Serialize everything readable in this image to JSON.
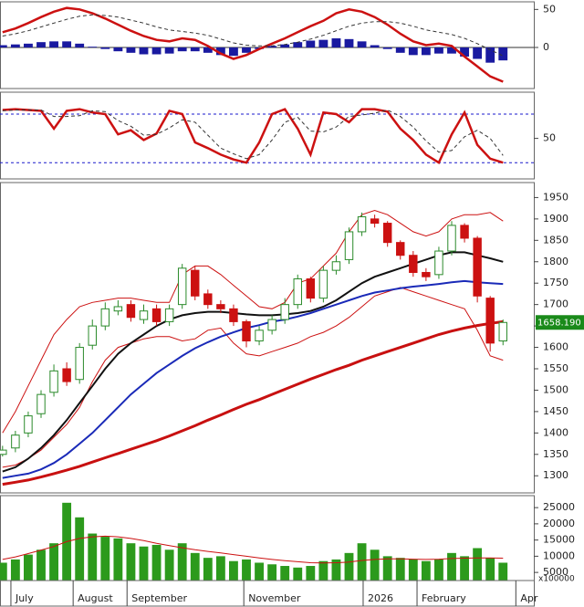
{
  "chart_data": [
    {
      "type": "macd",
      "ylim": [
        -54,
        60
      ],
      "yticks": [
        0,
        50
      ],
      "series": [
        {
          "color": "#cc1111",
          "style": "solid",
          "values": [
            20,
            25,
            32,
            40,
            47,
            52,
            50,
            45,
            38,
            30,
            22,
            15,
            10,
            8,
            12,
            10,
            2,
            -8,
            -15,
            -10,
            -2,
            5,
            12,
            20,
            28,
            35,
            45,
            50,
            47,
            40,
            30,
            18,
            8,
            3,
            5,
            2,
            -12,
            -25,
            -38,
            -45
          ]
        },
        {
          "color": "#333333",
          "style": "dashed",
          "values": [
            15,
            18,
            22,
            27,
            32,
            37,
            41,
            43,
            42,
            40,
            36,
            32,
            27,
            23,
            21,
            19,
            16,
            11,
            6,
            3,
            2,
            2,
            4,
            7,
            11,
            16,
            22,
            28,
            32,
            34,
            34,
            32,
            28,
            23,
            20,
            17,
            12,
            5,
            -3,
            -11
          ]
        },
        {
          "color": "#1a1aa0",
          "style": "bar",
          "values": [
            3,
            4,
            5,
            7,
            8,
            8,
            5,
            1,
            -2,
            -5,
            -7,
            -9,
            -9,
            -8,
            -5,
            -5,
            -7,
            -10,
            -11,
            -7,
            -2,
            2,
            4,
            7,
            9,
            10,
            12,
            11,
            8,
            3,
            -2,
            -7,
            -10,
            -10,
            -8,
            -8,
            -12,
            -15,
            -20,
            -17
          ]
        }
      ]
    },
    {
      "type": "stochastic",
      "ylim": [
        0,
        107
      ],
      "yticks": [
        50
      ],
      "levels": [
        80,
        20
      ],
      "level_color": "#1a1acc",
      "series": [
        {
          "color": "#cc1111",
          "style": "solid",
          "values": [
            85,
            86,
            85,
            84,
            62,
            84,
            86,
            82,
            80,
            55,
            60,
            48,
            56,
            84,
            80,
            45,
            38,
            30,
            24,
            20,
            45,
            80,
            86,
            62,
            30,
            82,
            80,
            70,
            86,
            86,
            83,
            62,
            48,
            30,
            20,
            55,
            82,
            42,
            25,
            20
          ]
        },
        {
          "color": "#333333",
          "style": "dashed",
          "values": [
            84,
            85,
            85,
            85,
            77,
            77,
            78,
            84,
            83,
            72,
            65,
            54,
            55,
            63,
            73,
            70,
            54,
            38,
            31,
            25,
            30,
            48,
            70,
            76,
            59,
            58,
            64,
            77,
            79,
            81,
            85,
            77,
            64,
            47,
            33,
            35,
            52,
            60,
            50,
            29
          ]
        }
      ]
    },
    {
      "type": "candlestick",
      "ylim": [
        1260,
        1985
      ],
      "yticks": [
        1300,
        1350,
        1400,
        1450,
        1500,
        1550,
        1600,
        1650,
        1700,
        1750,
        1800,
        1850,
        1900,
        1950
      ],
      "xlim": [
        -0.2,
        41.4
      ],
      "x": [
        0,
        1,
        2,
        3,
        4,
        5,
        6,
        7,
        8,
        9,
        10,
        11,
        12,
        13,
        14,
        15,
        16,
        17,
        18,
        19,
        20,
        21,
        22,
        23,
        24,
        25,
        26,
        27,
        28,
        29,
        30,
        31,
        32,
        33,
        34,
        35,
        36,
        37,
        38,
        39
      ],
      "open": [
        1350,
        1365,
        1400,
        1445,
        1495,
        1550,
        1525,
        1605,
        1650,
        1685,
        1700,
        1665,
        1690,
        1660,
        1700,
        1780,
        1725,
        1700,
        1690,
        1660,
        1615,
        1640,
        1665,
        1700,
        1760,
        1715,
        1780,
        1805,
        1870,
        1900,
        1890,
        1845,
        1815,
        1775,
        1770,
        1825,
        1885,
        1855,
        1715,
        1615
      ],
      "high": [
        1370,
        1405,
        1450,
        1500,
        1560,
        1565,
        1610,
        1665,
        1705,
        1710,
        1710,
        1700,
        1700,
        1700,
        1795,
        1790,
        1735,
        1710,
        1700,
        1665,
        1650,
        1675,
        1715,
        1770,
        1765,
        1790,
        1815,
        1880,
        1915,
        1910,
        1895,
        1850,
        1825,
        1785,
        1835,
        1895,
        1890,
        1860,
        1720,
        1665
      ],
      "low": [
        1345,
        1355,
        1390,
        1435,
        1485,
        1510,
        1515,
        1595,
        1640,
        1675,
        1660,
        1655,
        1650,
        1650,
        1690,
        1710,
        1690,
        1680,
        1650,
        1600,
        1605,
        1630,
        1655,
        1690,
        1705,
        1705,
        1770,
        1795,
        1860,
        1880,
        1835,
        1805,
        1765,
        1755,
        1760,
        1815,
        1845,
        1705,
        1590,
        1605
      ],
      "close": [
        1360,
        1395,
        1440,
        1490,
        1545,
        1520,
        1600,
        1650,
        1690,
        1695,
        1670,
        1685,
        1660,
        1690,
        1785,
        1720,
        1700,
        1690,
        1660,
        1615,
        1640,
        1665,
        1700,
        1760,
        1715,
        1780,
        1800,
        1870,
        1905,
        1890,
        1845,
        1815,
        1775,
        1765,
        1825,
        1885,
        1855,
        1720,
        1610,
        1658.19
      ],
      "up_color": "#2a8a2a",
      "down_color": "#cc1111",
      "series": [
        {
          "color": "#cc1111",
          "width": 1,
          "values": [
            1400,
            1450,
            1510,
            1570,
            1630,
            1665,
            1695,
            1705,
            1710,
            1715,
            1715,
            1710,
            1705,
            1705,
            1770,
            1790,
            1790,
            1770,
            1745,
            1720,
            1695,
            1690,
            1705,
            1750,
            1760,
            1790,
            1820,
            1870,
            1910,
            1920,
            1910,
            1890,
            1870,
            1860,
            1870,
            1900,
            1910,
            1910,
            1915,
            1895
          ]
        },
        {
          "color": "#cc1111",
          "width": 1,
          "values": [
            1320,
            1325,
            1340,
            1360,
            1390,
            1420,
            1460,
            1520,
            1570,
            1600,
            1610,
            1620,
            1625,
            1625,
            1615,
            1620,
            1640,
            1645,
            1610,
            1585,
            1580,
            1590,
            1600,
            1610,
            1625,
            1635,
            1650,
            1670,
            1695,
            1720,
            1730,
            1740,
            1730,
            1720,
            1710,
            1700,
            1690,
            1640,
            1580,
            1570
          ]
        },
        {
          "color": "#111111",
          "width": 2,
          "values": [
            1310,
            1320,
            1340,
            1365,
            1395,
            1430,
            1470,
            1510,
            1550,
            1585,
            1610,
            1630,
            1650,
            1665,
            1675,
            1680,
            1683,
            1683,
            1680,
            1677,
            1675,
            1675,
            1677,
            1680,
            1685,
            1695,
            1710,
            1730,
            1750,
            1765,
            1775,
            1785,
            1795,
            1805,
            1815,
            1822,
            1822,
            1815,
            1808,
            1800
          ]
        },
        {
          "color": "#1a2ab8",
          "width": 2,
          "values": [
            1295,
            1300,
            1305,
            1315,
            1330,
            1350,
            1375,
            1400,
            1430,
            1460,
            1490,
            1515,
            1540,
            1560,
            1580,
            1598,
            1612,
            1625,
            1635,
            1645,
            1652,
            1660,
            1665,
            1672,
            1680,
            1690,
            1700,
            1710,
            1720,
            1728,
            1733,
            1738,
            1742,
            1745,
            1748,
            1752,
            1755,
            1752,
            1750,
            1748
          ]
        },
        {
          "color": "#c81010",
          "width": 3,
          "values": [
            1280,
            1285,
            1290,
            1297,
            1305,
            1313,
            1322,
            1332,
            1342,
            1352,
            1362,
            1372,
            1382,
            1393,
            1405,
            1417,
            1430,
            1442,
            1455,
            1467,
            1478,
            1490,
            1502,
            1514,
            1526,
            1537,
            1548,
            1558,
            1570,
            1580,
            1590,
            1600,
            1610,
            1620,
            1630,
            1638,
            1645,
            1651,
            1656,
            1660
          ]
        }
      ],
      "last_price": {
        "value": 1658.19,
        "label": "1658.190"
      },
      "last_price_color": "#1a8a1a"
    },
    {
      "type": "bar",
      "ylim": [
        2500,
        28700
      ],
      "yticks": [
        5000,
        10000,
        15000,
        20000,
        25000
      ],
      "unit_label": "x100000",
      "color": "#2c9a1c",
      "values": [
        8000,
        9000,
        10500,
        12000,
        14000,
        26500,
        22000,
        17000,
        16000,
        15500,
        14000,
        13000,
        13500,
        12000,
        14000,
        11000,
        9500,
        10000,
        8500,
        9000,
        8000,
        7500,
        7000,
        6500,
        7000,
        8500,
        9000,
        11000,
        14000,
        12000,
        10000,
        9500,
        9000,
        8500,
        9000,
        11000,
        10000,
        12500,
        9500,
        8000
      ],
      "series": [
        {
          "color": "#cc1111",
          "values": [
            9000,
            9800,
            10800,
            11900,
            13000,
            14500,
            15500,
            16000,
            16200,
            16000,
            15500,
            14800,
            14000,
            13300,
            12600,
            12000,
            11500,
            11000,
            10500,
            10000,
            9500,
            9000,
            8600,
            8300,
            8000,
            7900,
            8000,
            8200,
            8700,
            9000,
            9200,
            9200,
            9100,
            9000,
            9100,
            9300,
            9400,
            9500,
            9500,
            9400
          ]
        }
      ],
      "xticks": [
        {
          "value": 0.65,
          "label": "July"
        },
        {
          "value": 5.5,
          "label": "August"
        },
        {
          "value": 9.7,
          "label": "September"
        },
        {
          "value": 18.8,
          "label": "November"
        },
        {
          "value": 28.1,
          "label": "2026"
        },
        {
          "value": 32.3,
          "label": "February"
        },
        {
          "value": 40,
          "label": "Apr"
        }
      ]
    }
  ]
}
